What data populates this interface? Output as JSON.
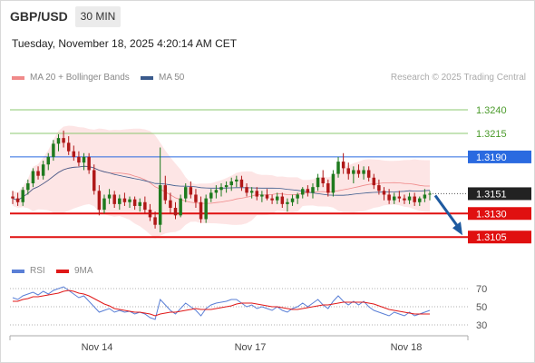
{
  "header": {
    "pair": "GBP/USD",
    "timeframe": "30 MIN",
    "datetime": "Tuesday, November 18, 2025 4:20:14 AM CET"
  },
  "legend": {
    "price": [
      {
        "name": "MA 20 + Bollinger Bands",
        "color": "#f08a8a"
      },
      {
        "name": "MA 50",
        "color": "#3a5a8c"
      }
    ],
    "rsi": [
      {
        "name": "RSI",
        "color": "#5a7fd6"
      },
      {
        "name": "9MA",
        "color": "#e01818"
      }
    ]
  },
  "credit": "Research © 2025 Trading Central",
  "colors": {
    "up": "#1e7a1e",
    "down": "#b01818",
    "resistance": "#8cc870",
    "pivot": "#2a6ae0",
    "support": "#e01010",
    "arrow": "#1e5aa0",
    "band": "#fde0e0"
  },
  "chart_data": {
    "type": "candlestick",
    "symbol": "GBP/USD",
    "interval": "30 MIN",
    "y_range": [
      1.3085,
      1.3265
    ],
    "x_ticks": [
      "Nov 14",
      "Nov 17",
      "Nov 18"
    ],
    "levels": [
      {
        "value": 1.324,
        "label": "1.3240",
        "kind": "resistance"
      },
      {
        "value": 1.3215,
        "label": "1.3215",
        "kind": "resistance"
      },
      {
        "value": 1.319,
        "label": "1.3190",
        "kind": "pivot"
      },
      {
        "value": 1.313,
        "label": "1.3130",
        "kind": "support"
      },
      {
        "value": 1.3105,
        "label": "1.3105",
        "kind": "support"
      }
    ],
    "last_price": {
      "value": 1.3151,
      "label": "1.3151"
    },
    "forecast": {
      "from": 1.3151,
      "to": 1.3105
    },
    "ohlc": [
      [
        1.3148,
        1.3154,
        1.314,
        1.3146
      ],
      [
        1.3146,
        1.3152,
        1.3138,
        1.3142
      ],
      [
        1.3142,
        1.3158,
        1.3138,
        1.3155
      ],
      [
        1.3155,
        1.3166,
        1.315,
        1.3162
      ],
      [
        1.3162,
        1.3178,
        1.3158,
        1.3175
      ],
      [
        1.3175,
        1.318,
        1.3166,
        1.317
      ],
      [
        1.317,
        1.3186,
        1.3166,
        1.3182
      ],
      [
        1.3182,
        1.3194,
        1.3176,
        1.319
      ],
      [
        1.319,
        1.3208,
        1.3186,
        1.3204
      ],
      [
        1.3204,
        1.3214,
        1.3196,
        1.321
      ],
      [
        1.321,
        1.3218,
        1.32,
        1.3205
      ],
      [
        1.3205,
        1.3212,
        1.3192,
        1.3196
      ],
      [
        1.3196,
        1.3202,
        1.3186,
        1.319
      ],
      [
        1.319,
        1.3196,
        1.318,
        1.3184
      ],
      [
        1.3184,
        1.3194,
        1.3176,
        1.319
      ],
      [
        1.319,
        1.3194,
        1.3172,
        1.3176
      ],
      [
        1.3176,
        1.3182,
        1.315,
        1.3154
      ],
      [
        1.3154,
        1.316,
        1.3128,
        1.3134
      ],
      [
        1.3134,
        1.315,
        1.313,
        1.3146
      ],
      [
        1.3146,
        1.3156,
        1.314,
        1.315
      ],
      [
        1.315,
        1.3154,
        1.3136,
        1.314
      ],
      [
        1.314,
        1.315,
        1.3134,
        1.3146
      ],
      [
        1.3146,
        1.3152,
        1.3138,
        1.3142
      ],
      [
        1.3142,
        1.3148,
        1.3136,
        1.3145
      ],
      [
        1.3145,
        1.3148,
        1.3134,
        1.3138
      ],
      [
        1.3138,
        1.3146,
        1.3132,
        1.3142
      ],
      [
        1.3142,
        1.3148,
        1.313,
        1.3134
      ],
      [
        1.3134,
        1.314,
        1.3122,
        1.3126
      ],
      [
        1.3126,
        1.3132,
        1.3114,
        1.3118
      ],
      [
        1.3118,
        1.32,
        1.311,
        1.316
      ],
      [
        1.316,
        1.317,
        1.314,
        1.3144
      ],
      [
        1.3144,
        1.3152,
        1.313,
        1.3136
      ],
      [
        1.3136,
        1.3142,
        1.3124,
        1.3128
      ],
      [
        1.3128,
        1.315,
        1.3126,
        1.3146
      ],
      [
        1.3146,
        1.3162,
        1.3142,
        1.3158
      ],
      [
        1.3158,
        1.3164,
        1.3146,
        1.315
      ],
      [
        1.315,
        1.3156,
        1.3136,
        1.3142
      ],
      [
        1.3142,
        1.3148,
        1.312,
        1.3124
      ],
      [
        1.3124,
        1.315,
        1.312,
        1.3146
      ],
      [
        1.3146,
        1.3156,
        1.3142,
        1.3152
      ],
      [
        1.3152,
        1.316,
        1.3146,
        1.3155
      ],
      [
        1.3155,
        1.3162,
        1.3148,
        1.3158
      ],
      [
        1.3158,
        1.3164,
        1.3152,
        1.316
      ],
      [
        1.316,
        1.3168,
        1.3154,
        1.3164
      ],
      [
        1.3164,
        1.317,
        1.3158,
        1.3166
      ],
      [
        1.3166,
        1.317,
        1.3154,
        1.3158
      ],
      [
        1.3158,
        1.3162,
        1.3148,
        1.3152
      ],
      [
        1.3152,
        1.3158,
        1.3146,
        1.3154
      ],
      [
        1.3154,
        1.3158,
        1.3144,
        1.3148
      ],
      [
        1.3148,
        1.3154,
        1.3142,
        1.315
      ],
      [
        1.315,
        1.3156,
        1.3144,
        1.3146
      ],
      [
        1.3146,
        1.315,
        1.314,
        1.3144
      ],
      [
        1.3144,
        1.3152,
        1.314,
        1.3148
      ],
      [
        1.3148,
        1.3152,
        1.3136,
        1.314
      ],
      [
        1.314,
        1.3146,
        1.3132,
        1.3142
      ],
      [
        1.3142,
        1.315,
        1.3138,
        1.3146
      ],
      [
        1.3146,
        1.3152,
        1.314,
        1.315
      ],
      [
        1.315,
        1.3158,
        1.3146,
        1.3156
      ],
      [
        1.3156,
        1.316,
        1.3148,
        1.3152
      ],
      [
        1.3152,
        1.3162,
        1.3146,
        1.3158
      ],
      [
        1.3158,
        1.3172,
        1.3154,
        1.3168
      ],
      [
        1.3168,
        1.3176,
        1.3158,
        1.3162
      ],
      [
        1.3162,
        1.3166,
        1.3148,
        1.3152
      ],
      [
        1.3152,
        1.3176,
        1.3148,
        1.3172
      ],
      [
        1.3172,
        1.319,
        1.3168,
        1.3185
      ],
      [
        1.3185,
        1.3194,
        1.3172,
        1.3178
      ],
      [
        1.3178,
        1.3184,
        1.3166,
        1.3172
      ],
      [
        1.3172,
        1.318,
        1.3162,
        1.3176
      ],
      [
        1.3176,
        1.3182,
        1.3168,
        1.3172
      ],
      [
        1.3172,
        1.318,
        1.3166,
        1.3176
      ],
      [
        1.3176,
        1.318,
        1.3164,
        1.3168
      ],
      [
        1.3168,
        1.3172,
        1.3156,
        1.316
      ],
      [
        1.316,
        1.3166,
        1.315,
        1.3154
      ],
      [
        1.3154,
        1.3158,
        1.3144,
        1.315
      ],
      [
        1.315,
        1.3156,
        1.314,
        1.3144
      ],
      [
        1.3144,
        1.3152,
        1.314,
        1.3148
      ],
      [
        1.3148,
        1.3154,
        1.3142,
        1.3146
      ],
      [
        1.3146,
        1.315,
        1.314,
        1.3144
      ],
      [
        1.3144,
        1.3152,
        1.314,
        1.3148
      ],
      [
        1.3148,
        1.3152,
        1.3138,
        1.3142
      ],
      [
        1.3142,
        1.3148,
        1.3138,
        1.3146
      ],
      [
        1.3146,
        1.3156,
        1.3142,
        1.315
      ],
      [
        1.315,
        1.3154,
        1.3144,
        1.3151
      ]
    ],
    "rsi_panel": {
      "levels": [
        70,
        50,
        30
      ],
      "y_range": [
        20,
        80
      ],
      "rsi": [
        60,
        58,
        62,
        64,
        66,
        63,
        67,
        64,
        68,
        70,
        72,
        68,
        64,
        60,
        62,
        56,
        50,
        44,
        46,
        48,
        44,
        46,
        44,
        45,
        42,
        44,
        42,
        38,
        36,
        58,
        52,
        46,
        42,
        48,
        54,
        50,
        46,
        40,
        48,
        52,
        54,
        55,
        56,
        58,
        58,
        54,
        50,
        52,
        48,
        50,
        48,
        46,
        50,
        46,
        44,
        48,
        50,
        54,
        50,
        54,
        58,
        52,
        48,
        56,
        62,
        56,
        52,
        56,
        52,
        56,
        50,
        46,
        44,
        42,
        40,
        44,
        42,
        40,
        44,
        40,
        42,
        44,
        46
      ],
      "rsi_ma": [
        56,
        56,
        58,
        59,
        61,
        61,
        62,
        63,
        64,
        65,
        67,
        68,
        67,
        65,
        64,
        62,
        59,
        56,
        53,
        51,
        48,
        47,
        46,
        45,
        44,
        44,
        43,
        42,
        40,
        42,
        43,
        44,
        44,
        45,
        46,
        47,
        48,
        47,
        47,
        47,
        48,
        49,
        50,
        51,
        53,
        54,
        54,
        54,
        53,
        52,
        51,
        50,
        50,
        49,
        48,
        47,
        47,
        48,
        49,
        50,
        51,
        52,
        52,
        53,
        54,
        55,
        55,
        55,
        55,
        55,
        54,
        53,
        51,
        49,
        47,
        46,
        45,
        44,
        43,
        42,
        42,
        42,
        42
      ]
    }
  }
}
